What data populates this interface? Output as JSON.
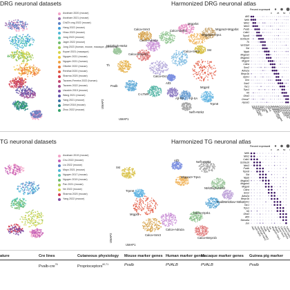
{
  "drg": {
    "left_title": "DRG neuronal datasets",
    "right_title": "Harmonized DRG neuronal atlas",
    "legend": [
      {
        "label": "Avraham 2020 (mouse)",
        "color": "#f3a3c7"
      },
      {
        "label": "Avraham 2021 (mouse)",
        "color": "#9a6fb0"
      },
      {
        "label": "Chi/Zh ong 2022 (mouse)",
        "color": "#5b7fc4"
      },
      {
        "label": "Hang 2022 (mouse)",
        "color": "#3d9bd6"
      },
      {
        "label": "Hhao 2023 (mouse)",
        "color": "#4fb6d9"
      },
      {
        "label": "Jung 2023 (mouse)",
        "color": "#58c7b3"
      },
      {
        "label": "Jager 2022 (mouse)",
        "color": "#6dbb6d"
      },
      {
        "label": "Jung 2023 (human, mouse, macaque, guinea pig)",
        "color": "#a3c955"
      },
      {
        "label": "Kupari 2021 (macaque)",
        "color": "#d4d448"
      },
      {
        "label": "Nguyen 2021 (mouse)",
        "color": "#f0c83c"
      },
      {
        "label": "Nguyen 2021 (human)",
        "color": "#f1a340"
      },
      {
        "label": "Oliveter 2022 (mouse)",
        "color": "#ee7d3a"
      },
      {
        "label": "Renthal 2020 (mouse)",
        "color": "#e25b3d"
      },
      {
        "label": "Sharma 2020 (mouse)",
        "color": "#d43d51"
      },
      {
        "label": "Tavares-Ferreira 2022 (human)",
        "color": "#c2466f"
      },
      {
        "label": "Tavares 2022 (mouse)",
        "color": "#a34c8f"
      },
      {
        "label": "Usoskin 2015 (mouse)",
        "color": "#7f4ea3"
      },
      {
        "label": "Wang 2021 (mouse)",
        "color": "#5d55a8"
      },
      {
        "label": "Yang 2021 (mouse)",
        "color": "#3a6ea5"
      },
      {
        "label": "Zeisel 2018 (mouse)",
        "color": "#2e8a8a"
      },
      {
        "label": "Zhou 2022 (mouse)",
        "color": "#34a36a"
      }
    ],
    "clusters": [
      {
        "label": "Calca+Smr2",
        "color": "#d6a24b"
      },
      {
        "label": "Calca+Adra2a",
        "color": "#c98fd6"
      },
      {
        "label": "Calca+Bmpr1b",
        "color": "#e07b7b"
      },
      {
        "label": "Calca+Oprk1",
        "color": "#8fc48f"
      },
      {
        "label": "Calca+Dcn",
        "color": "#b0a3d8"
      },
      {
        "label": "Calca+Sstr2",
        "color": "#79b8e0"
      },
      {
        "label": "Mrgprd",
        "color": "#e2563e"
      },
      {
        "label": "Mrgprb4",
        "color": "#e58ec4"
      },
      {
        "label": "Mrgpra3+Trpv1",
        "color": "#f1b55e"
      },
      {
        "label": "Mrgpra3+Mrgprb4",
        "color": "#c8a46e"
      },
      {
        "label": "Sst",
        "color": "#d9c24a"
      },
      {
        "label": "Th",
        "color": "#e6b24a"
      },
      {
        "label": "Pvalb",
        "color": "#5aa7d6"
      },
      {
        "label": "C-LTMR",
        "color": "#4fb3a3"
      },
      {
        "label": "Aβ-RA",
        "color": "#8d7bc2"
      },
      {
        "label": "Aβ-SA",
        "color": "#6a9ed1"
      },
      {
        "label": "Trpm8",
        "color": "#62b4e2"
      },
      {
        "label": "Nefh+Ntrk2",
        "color": "#a6a6a6"
      },
      {
        "label": "Ntrk3high+Ntrk2",
        "color": "#9ec79e"
      },
      {
        "label": "Atf3",
        "color": "#7a8ee0"
      }
    ],
    "axis_x": "UMAP1",
    "axis_y": "UMAP2",
    "dot_legend_title": "Percent expressed",
    "dot_legend_values": [
      "0",
      "25",
      "50",
      "75"
    ],
    "genes": [
      "Atf3",
      "Nefh",
      "Ntrk2",
      "Ntrk3",
      "Pvalb",
      "Calb1",
      "Trpm8",
      "S100a16",
      "Th",
      "Fam19a4",
      "Sst",
      "Nppb",
      "Mrgpra3",
      "Mrgprb4",
      "Mrgprd",
      "Calca",
      "Smr2",
      "Adra2a",
      "Bmpr1b",
      "Oprk1",
      "Dcn",
      "Sstr2",
      "Tac1",
      "Trpv1",
      "Kit",
      "Gfra3",
      "Chrna7",
      "Hpcal1"
    ],
    "types": [
      "Atf3",
      "Nefh+Ntrk2",
      "Ntrk3+Ntrk2",
      "Pvalb",
      "Aβ-RA",
      "Aβ-SA",
      "C-LTMR",
      "Th",
      "Trpm8",
      "Sst",
      "Mrgpra3+Trpv1",
      "Mrgpra3+Mrgprb4",
      "Mrgprb4",
      "Mrgprd",
      "Calca+Smr2",
      "Calca+Adra2a",
      "Calca+Bmpr1b",
      "Calca+Oprk1",
      "Calca+Dcn",
      "Calca+Sstr2"
    ]
  },
  "tg": {
    "left_title": "TG neuronal datasets",
    "right_title": "Harmonized TG neuronal atlas",
    "legend": [
      {
        "label": "Avraham 2019 (mouse)",
        "color": "#f3a3c7"
      },
      {
        "label": "Chu 2022 (mouse)",
        "color": "#c55fb6"
      },
      {
        "label": "Liu 2022 (mouse)",
        "color": "#5b7fc4"
      },
      {
        "label": "Mayo 2021 (mouse)",
        "color": "#4fb6d9"
      },
      {
        "label": "Nguyen 2017 (mouse)",
        "color": "#58c7b3"
      },
      {
        "label": "Nguyen 2019 (mouse)",
        "color": "#6dbb6d"
      },
      {
        "label": "Pan 2021 (mouse)",
        "color": "#a3c955"
      },
      {
        "label": "Ne 2022 (mouse)",
        "color": "#d4d448"
      },
      {
        "label": "Sharma 2020 (mouse)",
        "color": "#d43d51"
      },
      {
        "label": "Yang 2022 (mouse)",
        "color": "#7f4ea3"
      }
    ],
    "clusters": [
      {
        "label": "Atf3",
        "color": "#7a8ee0"
      },
      {
        "label": "Nefh+Ntrk2",
        "color": "#a6a6a6"
      },
      {
        "label": "Ntrk3high+Ntrk2",
        "color": "#9ec79e"
      },
      {
        "label": "Sst",
        "color": "#d9c24a"
      },
      {
        "label": "Mrgpra3+Trpv1",
        "color": "#f1b55e"
      },
      {
        "label": "Mrgprd",
        "color": "#e2563e"
      },
      {
        "label": "Calca+Smr2",
        "color": "#d6a24b"
      },
      {
        "label": "Calca+Adra2a",
        "color": "#c98fd6"
      },
      {
        "label": "Calca+Oprk1",
        "color": "#8fc48f"
      },
      {
        "label": "Calca+Bmpr1b",
        "color": "#e07b7b"
      },
      {
        "label": "Trpm8",
        "color": "#62b4e2"
      },
      {
        "label": "Pvalb",
        "color": "#5aa7d6"
      },
      {
        "label": "Ntrk3low+Ntrk2",
        "color": "#c0a4d9"
      }
    ],
    "axis_x": "UMAP1",
    "axis_y": "UMAP2",
    "dot_legend_title": "Percent expressed",
    "dot_legend_values": [
      "0",
      "25",
      "50",
      "75"
    ],
    "genes": [
      "Nefh",
      "Ntrk2",
      "Calb1",
      "S100a16",
      "Ntrk3",
      "Pvalb",
      "Trpm8",
      "Sst",
      "Nppb",
      "Mrgpra3",
      "Mrgprb4",
      "Mrgprd",
      "Calca",
      "Smr2",
      "Adra2a",
      "Bmpr1b",
      "Oprk1",
      "Tac1",
      "Trpv1",
      "Kit",
      "Gfra3",
      "Atf3",
      "Sema6a",
      "Jun"
    ],
    "types": [
      "Atf3",
      "Nefh+Ntrk2",
      "Ntrk3high+Ntrk2",
      "Ntrk3low+Ntrk2",
      "Pvalb",
      "Trpm8",
      "Sst",
      "Mrgpra3+Trpv1",
      "Mrgprd",
      "Calca+Smr2",
      "Calca+Adra2a",
      "Calca+Oprk1",
      "Calca+Bmpr1b"
    ]
  },
  "table": {
    "headers": [
      "ature",
      "Cre lines",
      "Cutaneous physiology",
      "Mouse marker genes",
      "Human marker genes",
      "Macaque marker genes",
      "Guinea pig marker"
    ],
    "row": [
      "",
      "Pvalb-cre",
      "Proprioceptors",
      "Pvalb",
      "PVALB",
      "PVALB",
      "Pvalb"
    ],
    "row_sups": [
      "",
      "76",
      "60,71",
      "",
      "",
      "",
      ""
    ]
  }
}
